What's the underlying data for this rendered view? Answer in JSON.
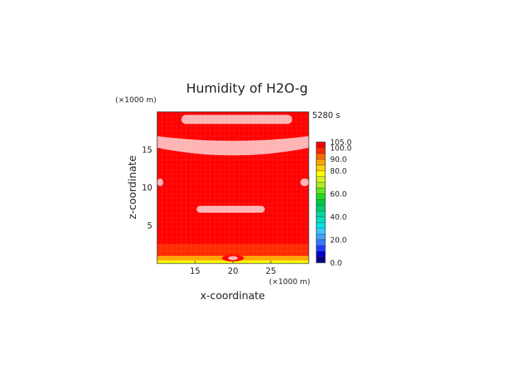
{
  "chart_data": {
    "type": "heatmap",
    "title": "Humidity of H2O-g",
    "xlabel": "x-coordinate",
    "ylabel": "z-coordinate",
    "x_unit": "(×1000 m)",
    "y_unit": "(×1000 m)",
    "time_label": "5280 s",
    "xlim": [
      10,
      30
    ],
    "ylim": [
      0,
      20
    ],
    "x_ticks": [
      15,
      20,
      25
    ],
    "y_ticks": [
      5,
      10,
      15
    ],
    "colorbar": {
      "tick_labels": [
        {
          "value": 0,
          "label": "0.0"
        },
        {
          "value": 20,
          "label": "20.0"
        },
        {
          "value": 40,
          "label": "40.0"
        },
        {
          "value": 60,
          "label": "60.0"
        },
        {
          "value": 80,
          "label": "80.0"
        },
        {
          "value": 90,
          "label": "90.0"
        },
        {
          "value": 100,
          "label": "100.0"
        },
        {
          "value": 105,
          "label": "105.0"
        }
      ],
      "levels": [
        0,
        5,
        10,
        15,
        20,
        25,
        30,
        35,
        40,
        45,
        50,
        55,
        60,
        65,
        70,
        75,
        80,
        85,
        90,
        95,
        100,
        105
      ],
      "colors": [
        "#00008b",
        "#0000cd",
        "#1e3cff",
        "#2f7bff",
        "#3fa0ff",
        "#3fc8ff",
        "#00e5e5",
        "#00e0c0",
        "#00d8a0",
        "#00d070",
        "#00c840",
        "#1edc1e",
        "#66e61e",
        "#a6ec1e",
        "#d8f01e",
        "#ffff00",
        "#ffd400",
        "#ffa500",
        "#ff6a00",
        "#ff2a00",
        "#ff0000",
        "#ffffff"
      ]
    },
    "field": {
      "background_value": 100,
      "regions": [
        {
          "kind": "supersaturated",
          "value": 102,
          "x_range": [
            13.2,
            27.8
          ],
          "z_range": [
            18.4,
            19.6
          ]
        },
        {
          "kind": "supersaturated",
          "value": 102,
          "x_range": [
            10,
            30
          ],
          "z_range": [
            14.0,
            16.8
          ],
          "shape": "arc"
        },
        {
          "kind": "supersaturated",
          "value": 102,
          "x_range": [
            10,
            10.8
          ],
          "z_range": [
            10.2,
            11.2
          ]
        },
        {
          "kind": "supersaturated",
          "value": 102,
          "x_range": [
            28.9,
            30
          ],
          "z_range": [
            10.2,
            11.2
          ]
        },
        {
          "kind": "supersaturated",
          "value": 102,
          "x_range": [
            15.2,
            24.2
          ],
          "z_range": [
            6.7,
            7.6
          ]
        },
        {
          "kind": "near-surface",
          "value": 95,
          "x_range": [
            10,
            30
          ],
          "z_range": [
            1.0,
            2.6
          ]
        },
        {
          "kind": "near-surface",
          "value": 88,
          "x_range": [
            10,
            30
          ],
          "z_range": [
            0.4,
            1.0
          ]
        },
        {
          "kind": "near-surface",
          "value": 78,
          "x_range": [
            10,
            30
          ],
          "z_range": [
            0.0,
            0.4
          ]
        }
      ]
    }
  }
}
